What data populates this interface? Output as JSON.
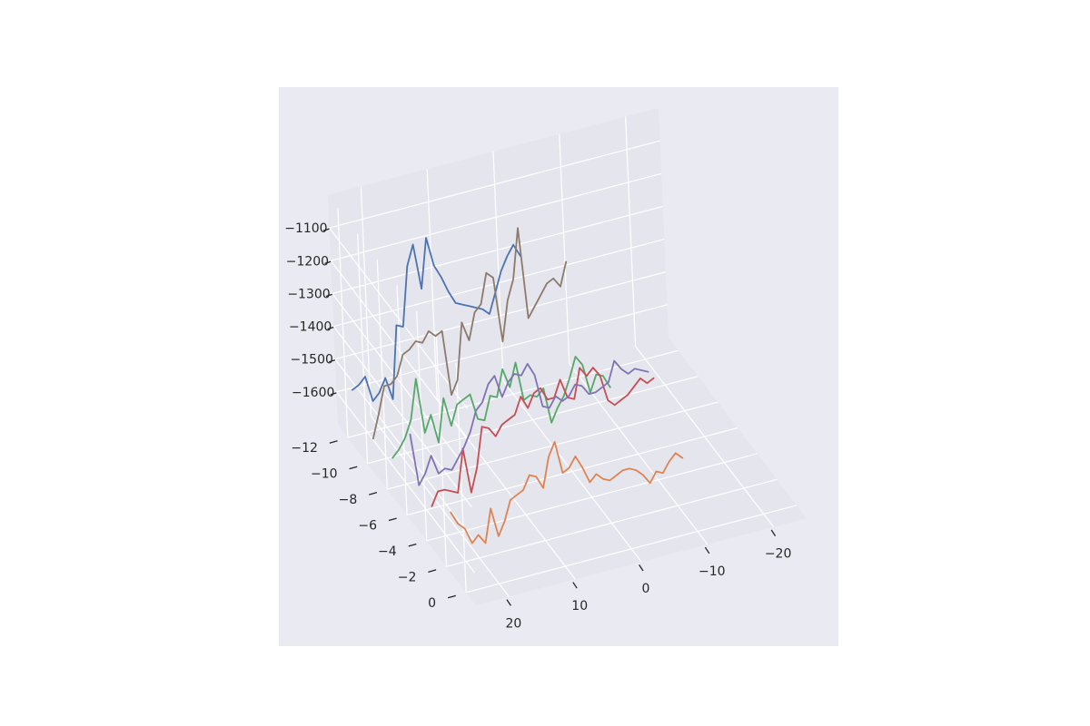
{
  "chart_data": {
    "type": "line",
    "projection": "3d",
    "title": "",
    "xlabel": "",
    "ylabel": "",
    "zlabel": "",
    "xlim": [
      -25,
      25
    ],
    "ylim": [
      -13,
      1
    ],
    "zlim": [
      -1700,
      -1000
    ],
    "x_ticks": [
      "-20",
      "-10",
      "0",
      "10",
      "20"
    ],
    "x_tick_values": [
      -20,
      -10,
      0,
      10,
      20
    ],
    "y_ticks": [
      "-12",
      "-10",
      "-8",
      "-6",
      "-4",
      "-2",
      "0"
    ],
    "y_tick_values": [
      -12,
      -10,
      -8,
      -6,
      -4,
      -2,
      0
    ],
    "z_ticks": [
      "−1100",
      "−1200",
      "−1300",
      "−1400",
      "−1500",
      "−1600"
    ],
    "z_tick_values": [
      -1100,
      -1200,
      -1300,
      -1400,
      -1500,
      -1600
    ],
    "grid": true,
    "colors": {
      "background": "#eaeaf2",
      "pane_back": "#e5e5ee",
      "pane_left": "#e5e5ee",
      "pane_floor": "#e5e5ee",
      "grid": "#ffffff",
      "text": "#262626"
    },
    "series": [
      {
        "color": "#4c72b0",
        "y": -12,
        "x": [
          24,
          23,
          22,
          21,
          20,
          19,
          18,
          17,
          16,
          15,
          14,
          13,
          12,
          11,
          10,
          9,
          8,
          7,
          6,
          5,
          4,
          3,
          2,
          1,
          0,
          -1,
          -2
        ],
        "z": [
          -1560,
          -1550,
          -1530,
          -1610,
          -1590,
          -1550,
          -1620,
          -1400,
          -1410,
          -1230,
          -1170,
          -1310,
          -1160,
          -1250,
          -1290,
          -1340,
          -1380,
          -1390,
          -1400,
          -1410,
          -1420,
          -1440,
          -1380,
          -1320,
          -1280,
          -1250,
          -1290
        ]
      },
      {
        "color": "#8c7a6b",
        "y": -10,
        "x": [
          24,
          23,
          22,
          21,
          20,
          19,
          18,
          17,
          16,
          15,
          14,
          13,
          12,
          11,
          10,
          9,
          8,
          7,
          6,
          5,
          4,
          3,
          2,
          1,
          0,
          -1,
          -2,
          -3,
          -4,
          -5,
          -6
        ],
        "z": [
          -1630,
          -1560,
          -1480,
          -1480,
          -1460,
          -1400,
          -1390,
          -1370,
          -1380,
          -1350,
          -1370,
          -1360,
          -1560,
          -1520,
          -1350,
          -1410,
          -1330,
          -1310,
          -1220,
          -1240,
          -1440,
          -1320,
          -1260,
          -1110,
          -1390,
          -1360,
          -1330,
          -1300,
          -1290,
          -1320,
          -1250
        ]
      },
      {
        "color": "#55a868",
        "y": -8,
        "x": [
          24,
          23,
          22,
          21,
          20,
          19,
          18,
          17,
          16,
          15,
          14,
          13,
          12,
          11,
          10,
          9,
          8,
          7,
          6,
          5,
          4,
          3,
          2,
          1,
          0,
          -1,
          -2,
          -3,
          -4,
          -5,
          -6,
          -7,
          -8,
          -9
        ],
        "z": [
          -1610,
          -1590,
          -1560,
          -1510,
          -1390,
          -1560,
          -1510,
          -1600,
          -1470,
          -1560,
          -1500,
          -1490,
          -1480,
          -1560,
          -1570,
          -1500,
          -1510,
          -1430,
          -1490,
          -1420,
          -1540,
          -1530,
          -1540,
          -1520,
          -1630,
          -1590,
          -1560,
          -1510,
          -1450,
          -1480,
          -1570,
          -1520,
          -1530,
          -1570
        ]
      },
      {
        "color": "#dd8452",
        "y": -2,
        "x": [
          24,
          23,
          22,
          21,
          20,
          19,
          18,
          17,
          16,
          15,
          14,
          13,
          12,
          11,
          10,
          9,
          8,
          7,
          6,
          5,
          4,
          3,
          2,
          1,
          0,
          -1,
          -2,
          -3,
          -4,
          -5,
          -6,
          -7,
          -8,
          -9,
          -10,
          -11
        ],
        "z": [
          -1540,
          -1580,
          -1600,
          -1650,
          -1630,
          -1660,
          -1560,
          -1650,
          -1610,
          -1550,
          -1540,
          -1530,
          -1490,
          -1500,
          -1540,
          -1450,
          -1410,
          -1510,
          -1500,
          -1470,
          -1510,
          -1560,
          -1540,
          -1560,
          -1570,
          -1560,
          -1550,
          -1550,
          -1560,
          -1580,
          -1610,
          -1580,
          -1590,
          -1560,
          -1540,
          -1560
        ]
      },
      {
        "color": "#c44e52",
        "y": -4,
        "x": [
          24,
          23,
          22,
          21,
          20,
          19,
          18,
          17,
          16,
          15,
          14,
          13,
          12,
          11,
          10,
          9,
          8,
          7,
          6,
          5,
          4,
          3,
          2,
          1,
          0,
          -1,
          -2,
          -3,
          -4,
          -5,
          -6,
          -7,
          -8,
          -9,
          -10
        ],
        "z": [
          -1600,
          -1560,
          -1560,
          -1570,
          -1580,
          -1450,
          -1590,
          -1520,
          -1400,
          -1410,
          -1440,
          -1410,
          -1400,
          -1390,
          -1340,
          -1380,
          -1340,
          -1330,
          -1370,
          -1370,
          -1320,
          -1380,
          -1390,
          -1300,
          -1330,
          -1310,
          -1340,
          -1420,
          -1440,
          -1430,
          -1420,
          -1400,
          -1380,
          -1400,
          -1390
        ]
      },
      {
        "color": "#8172b3",
        "y": -6,
        "x": [
          24,
          23,
          22,
          21,
          20,
          19,
          18,
          17,
          16,
          15,
          14,
          13,
          12,
          11,
          10,
          9,
          8,
          7,
          6,
          5,
          4,
          3,
          2,
          1,
          0,
          -1,
          -2,
          -3,
          -4,
          -5,
          -6,
          -7,
          -8,
          -9,
          -10,
          -11,
          -12
        ],
        "z": [
          -1460,
          -1620,
          -1590,
          -1540,
          -1600,
          -1590,
          -1600,
          -1570,
          -1540,
          -1500,
          -1440,
          -1420,
          -1370,
          -1350,
          -1420,
          -1380,
          -1360,
          -1370,
          -1340,
          -1380,
          -1480,
          -1490,
          -1460,
          -1480,
          -1470,
          -1440,
          -1450,
          -1480,
          -1480,
          -1470,
          -1460,
          -1400,
          -1430,
          -1450,
          -1440,
          -1450,
          -1460
        ]
      }
    ]
  }
}
